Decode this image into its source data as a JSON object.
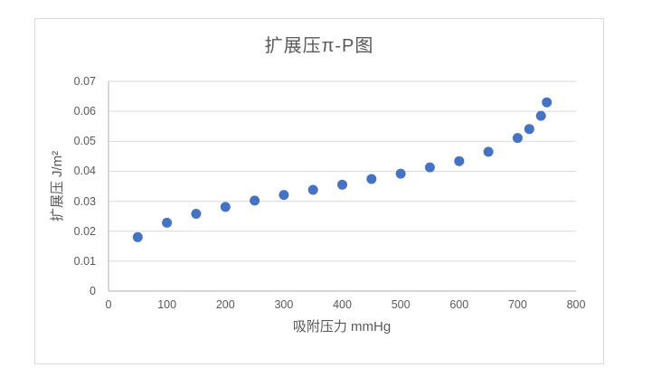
{
  "chart": {
    "title": "扩展压π-P图",
    "x_axis_title": "吸附压力 mmHg",
    "y_axis_title": "扩展压 J/m²",
    "x_tick_labels": [
      "0",
      "100",
      "200",
      "300",
      "400",
      "500",
      "600",
      "700",
      "800"
    ],
    "y_tick_labels": [
      "0",
      "0.01",
      "0.02",
      "0.03",
      "0.04",
      "0.05",
      "0.06",
      "0.07"
    ],
    "colors": {
      "marker": "#4472C4",
      "gridline": "#d9d9d9",
      "axis_line": "#bfbfbf",
      "text": "#595959",
      "chart_border": "#d9d9d9",
      "background": "#ffffff"
    }
  },
  "chart_data": {
    "type": "scatter",
    "title": "扩展压π-P图",
    "xlabel": "吸附压力 mmHg",
    "ylabel": "扩展压 J/m²",
    "xlim": [
      0,
      800
    ],
    "ylim": [
      0,
      0.07
    ],
    "x_tick_step": 100,
    "y_tick_step": 0.01,
    "grid": "horizontal-only",
    "legend": "none",
    "series": [
      {
        "name": "扩展压",
        "marker": "circle",
        "color": "#4472C4",
        "points": [
          {
            "x": 50,
            "y": 0.018
          },
          {
            "x": 100,
            "y": 0.0228
          },
          {
            "x": 150,
            "y": 0.0258
          },
          {
            "x": 200,
            "y": 0.0281
          },
          {
            "x": 250,
            "y": 0.0302
          },
          {
            "x": 300,
            "y": 0.0321
          },
          {
            "x": 350,
            "y": 0.0338
          },
          {
            "x": 400,
            "y": 0.0355
          },
          {
            "x": 450,
            "y": 0.0374
          },
          {
            "x": 500,
            "y": 0.0392
          },
          {
            "x": 550,
            "y": 0.0413
          },
          {
            "x": 600,
            "y": 0.0434
          },
          {
            "x": 650,
            "y": 0.0465
          },
          {
            "x": 700,
            "y": 0.0511
          },
          {
            "x": 720,
            "y": 0.0541
          },
          {
            "x": 740,
            "y": 0.0585
          },
          {
            "x": 750,
            "y": 0.063
          }
        ]
      }
    ]
  }
}
